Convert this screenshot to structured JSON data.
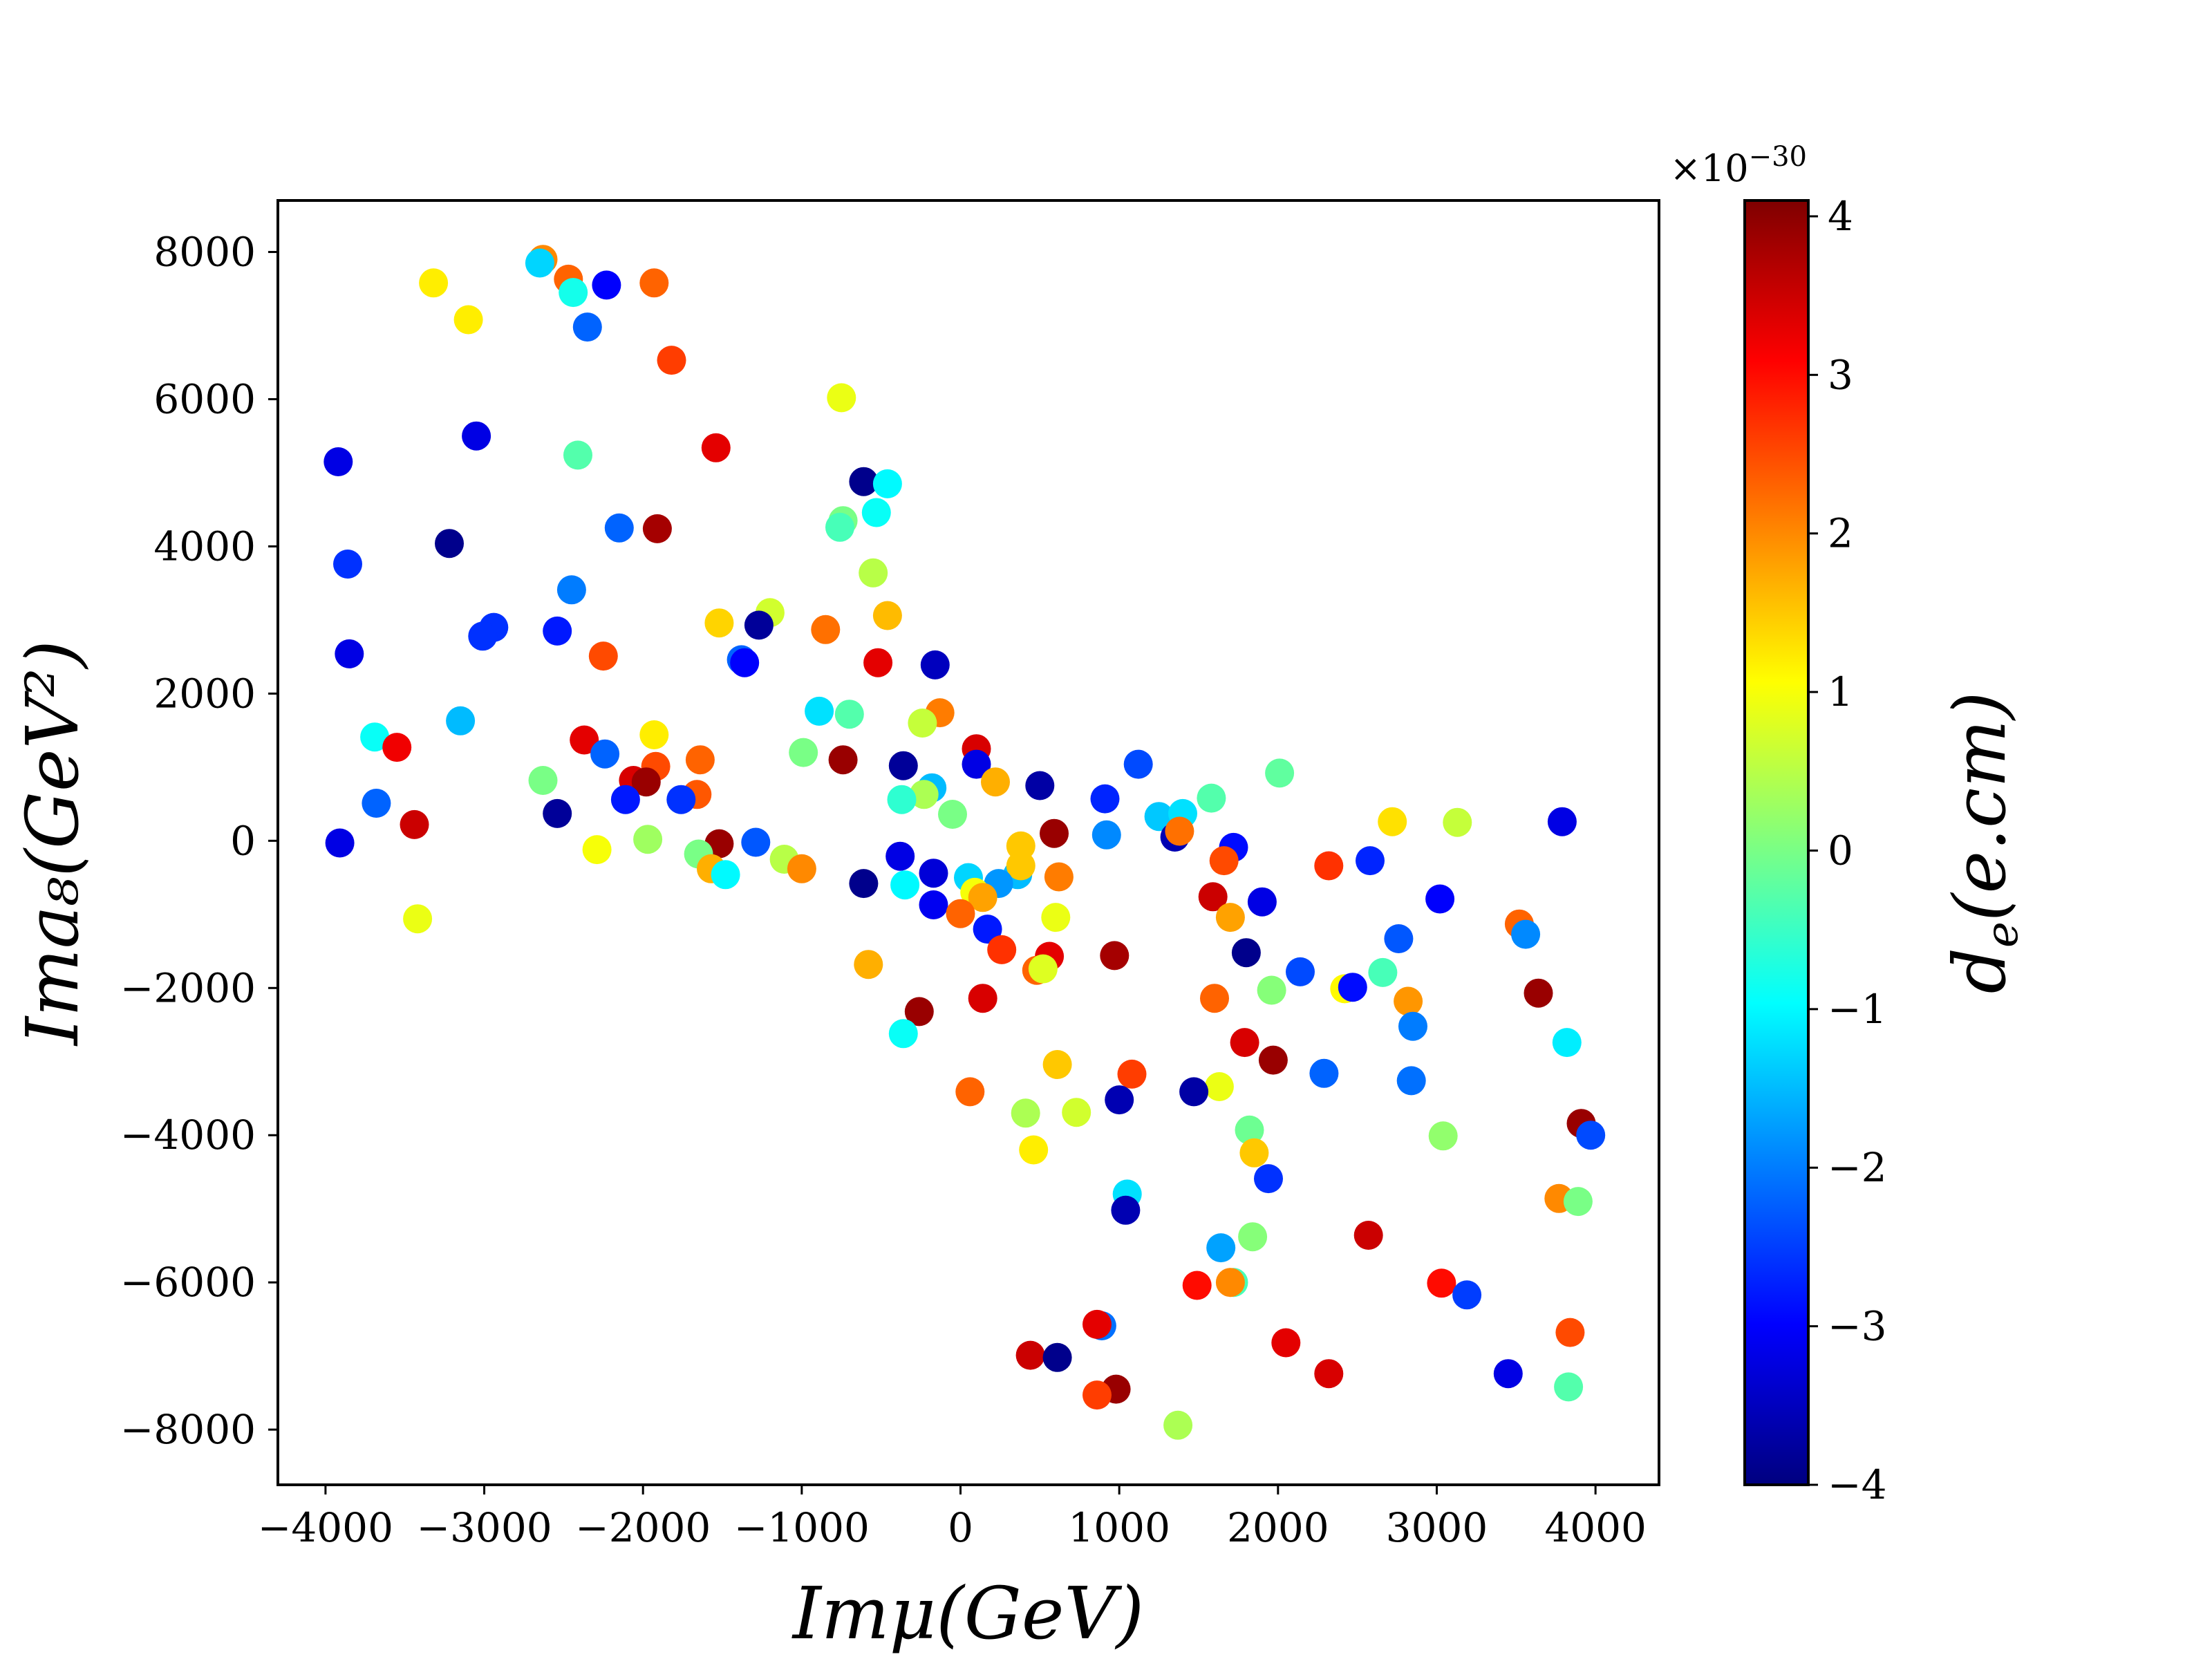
{
  "chart_data": {
    "type": "scatter",
    "xlabel": "Imμ(GeV)",
    "ylabel": "Ima₈(GeV²)",
    "xlim": [
      -4300,
      4400
    ],
    "ylim": [
      -8750,
      8700
    ],
    "x_ticks": [
      -4000,
      -3000,
      -2000,
      -1000,
      0,
      1000,
      2000,
      3000,
      4000
    ],
    "x_tick_labels": [
      "−4000",
      "−3000",
      "−2000",
      "−1000",
      "0",
      "1000",
      "2000",
      "3000",
      "4000"
    ],
    "y_ticks": [
      -8000,
      -6000,
      -4000,
      -2000,
      0,
      2000,
      4000,
      6000,
      8000
    ],
    "y_tick_labels": [
      "−8000",
      "−6000",
      "−4000",
      "−2000",
      "0",
      "2000",
      "4000",
      "6000",
      "8000"
    ],
    "grid": false,
    "colorbar": {
      "label": "d_e(e.cm)",
      "label_main": "d",
      "label_sub": "e",
      "label_rest": "(e.cm)",
      "exponent_prefix": "×10",
      "exponent_power": "−30",
      "range": [
        -4.0,
        4.1
      ],
      "ticks": [
        -4,
        -3,
        -2,
        -1,
        0,
        1,
        2,
        3,
        4
      ],
      "tick_labels": [
        "−4",
        "−3",
        "−2",
        "−1",
        "0",
        "1",
        "2",
        "3",
        "4"
      ],
      "colormap": "jet"
    },
    "points": [
      {
        "x": -2630,
        "y": 7900,
        "c": 2.0
      },
      {
        "x": -2650,
        "y": 7850,
        "c": -1.3
      },
      {
        "x": -2470,
        "y": 7630,
        "c": 2.3
      },
      {
        "x": -2230,
        "y": 7550,
        "c": -3.0
      },
      {
        "x": -1930,
        "y": 7580,
        "c": 2.3
      },
      {
        "x": -3320,
        "y": 7580,
        "c": 1.2
      },
      {
        "x": -2440,
        "y": 7450,
        "c": -0.8
      },
      {
        "x": -3100,
        "y": 7080,
        "c": 1.2
      },
      {
        "x": -2350,
        "y": 6980,
        "c": -2.2
      },
      {
        "x": -1820,
        "y": 6530,
        "c": 2.6
      },
      {
        "x": -750,
        "y": 6020,
        "c": 0.9
      },
      {
        "x": -3050,
        "y": 5500,
        "c": -3.2
      },
      {
        "x": -1540,
        "y": 5340,
        "c": 3.3
      },
      {
        "x": -2410,
        "y": 5240,
        "c": -0.3
      },
      {
        "x": -3920,
        "y": 5150,
        "c": -3.2
      },
      {
        "x": -610,
        "y": 4880,
        "c": -3.9
      },
      {
        "x": -460,
        "y": 4850,
        "c": -1.0
      },
      {
        "x": -530,
        "y": 4460,
        "c": -0.9
      },
      {
        "x": -740,
        "y": 4350,
        "c": 0.0
      },
      {
        "x": -760,
        "y": 4260,
        "c": -0.4
      },
      {
        "x": -2150,
        "y": 4250,
        "c": -2.2
      },
      {
        "x": -1910,
        "y": 4240,
        "c": 3.8
      },
      {
        "x": -3220,
        "y": 4040,
        "c": -3.9
      },
      {
        "x": -3860,
        "y": 3760,
        "c": -2.6
      },
      {
        "x": -550,
        "y": 3640,
        "c": 0.5
      },
      {
        "x": -2450,
        "y": 3410,
        "c": -2.0
      },
      {
        "x": -1200,
        "y": 3100,
        "c": 0.7
      },
      {
        "x": -460,
        "y": 3060,
        "c": 1.6
      },
      {
        "x": -1520,
        "y": 2960,
        "c": 1.4
      },
      {
        "x": -1270,
        "y": 2930,
        "c": -3.8
      },
      {
        "x": -2940,
        "y": 2900,
        "c": -2.6
      },
      {
        "x": -850,
        "y": 2870,
        "c": 2.2
      },
      {
        "x": -2540,
        "y": 2850,
        "c": -2.8
      },
      {
        "x": -3010,
        "y": 2780,
        "c": -2.6
      },
      {
        "x": -3850,
        "y": 2540,
        "c": -3.2
      },
      {
        "x": -2250,
        "y": 2510,
        "c": 2.5
      },
      {
        "x": -1380,
        "y": 2460,
        "c": -2.2
      },
      {
        "x": -1360,
        "y": 2420,
        "c": -3.0
      },
      {
        "x": -520,
        "y": 2420,
        "c": 3.3
      },
      {
        "x": -160,
        "y": 2390,
        "c": -3.5
      },
      {
        "x": -890,
        "y": 1760,
        "c": -1.2
      },
      {
        "x": -700,
        "y": 1720,
        "c": -0.3
      },
      {
        "x": -130,
        "y": 1740,
        "c": 2.1
      },
      {
        "x": -240,
        "y": 1600,
        "c": 0.6
      },
      {
        "x": -3150,
        "y": 1630,
        "c": -1.5
      },
      {
        "x": -1930,
        "y": 1440,
        "c": 1.2
      },
      {
        "x": -3690,
        "y": 1410,
        "c": -0.9
      },
      {
        "x": -2370,
        "y": 1370,
        "c": 3.3
      },
      {
        "x": -3550,
        "y": 1270,
        "c": 3.2
      },
      {
        "x": 100,
        "y": 1250,
        "c": 3.4
      },
      {
        "x": -990,
        "y": 1200,
        "c": 0.0
      },
      {
        "x": -2240,
        "y": 1180,
        "c": -2.2
      },
      {
        "x": -740,
        "y": 1100,
        "c": 3.9
      },
      {
        "x": -1640,
        "y": 1100,
        "c": 2.3
      },
      {
        "x": 100,
        "y": 1040,
        "c": -3.2
      },
      {
        "x": 1120,
        "y": 1040,
        "c": -2.4
      },
      {
        "x": -360,
        "y": 1020,
        "c": -3.8
      },
      {
        "x": -1920,
        "y": 1010,
        "c": 2.5
      },
      {
        "x": 2010,
        "y": 920,
        "c": -0.2
      },
      {
        "x": -2060,
        "y": 820,
        "c": 3.4
      },
      {
        "x": -2630,
        "y": 820,
        "c": 0.0
      },
      {
        "x": -1980,
        "y": 800,
        "c": 3.9
      },
      {
        "x": 220,
        "y": 800,
        "c": 1.7
      },
      {
        "x": 500,
        "y": 750,
        "c": -3.7
      },
      {
        "x": -180,
        "y": 720,
        "c": -1.5
      },
      {
        "x": -1660,
        "y": 630,
        "c": 2.4
      },
      {
        "x": -230,
        "y": 630,
        "c": 0.4
      },
      {
        "x": -2110,
        "y": 560,
        "c": -2.8
      },
      {
        "x": -1760,
        "y": 560,
        "c": -2.6
      },
      {
        "x": -370,
        "y": 560,
        "c": -0.6
      },
      {
        "x": 910,
        "y": 570,
        "c": -2.7
      },
      {
        "x": 1580,
        "y": 580,
        "c": -0.3
      },
      {
        "x": -3680,
        "y": 510,
        "c": -2.2
      },
      {
        "x": -2540,
        "y": 370,
        "c": -3.8
      },
      {
        "x": -50,
        "y": 360,
        "c": 0.0
      },
      {
        "x": 1250,
        "y": 330,
        "c": -1.4
      },
      {
        "x": 1400,
        "y": 370,
        "c": -1.2
      },
      {
        "x": 2720,
        "y": 260,
        "c": 1.3
      },
      {
        "x": 3130,
        "y": 250,
        "c": 0.6
      },
      {
        "x": 3790,
        "y": 260,
        "c": -3.2
      },
      {
        "x": -3440,
        "y": 220,
        "c": 3.5
      },
      {
        "x": 590,
        "y": 100,
        "c": 3.9
      },
      {
        "x": 920,
        "y": 80,
        "c": -1.9
      },
      {
        "x": 1350,
        "y": 50,
        "c": -3.6
      },
      {
        "x": 1380,
        "y": 130,
        "c": 2.2
      },
      {
        "x": 1720,
        "y": -90,
        "c": -2.9
      },
      {
        "x": -3910,
        "y": -30,
        "c": -3.2
      },
      {
        "x": -1520,
        "y": -40,
        "c": 3.9
      },
      {
        "x": -1290,
        "y": -20,
        "c": -2.3
      },
      {
        "x": -1970,
        "y": 20,
        "c": 0.3
      },
      {
        "x": -2290,
        "y": -120,
        "c": 1.0
      },
      {
        "x": 380,
        "y": -70,
        "c": 1.5
      },
      {
        "x": -1650,
        "y": -180,
        "c": 0.0
      },
      {
        "x": -1110,
        "y": -250,
        "c": 0.5
      },
      {
        "x": -380,
        "y": -210,
        "c": -3.2
      },
      {
        "x": 1660,
        "y": -270,
        "c": 2.5
      },
      {
        "x": 2320,
        "y": -340,
        "c": 2.7
      },
      {
        "x": 2580,
        "y": -270,
        "c": -2.7
      },
      {
        "x": -1570,
        "y": -380,
        "c": 1.7
      },
      {
        "x": -1480,
        "y": -460,
        "c": -1.0
      },
      {
        "x": -1000,
        "y": -380,
        "c": 2.0
      },
      {
        "x": -170,
        "y": -440,
        "c": -3.3
      },
      {
        "x": 50,
        "y": -500,
        "c": -1.3
      },
      {
        "x": 360,
        "y": -460,
        "c": -1.5
      },
      {
        "x": 380,
        "y": -340,
        "c": 1.5
      },
      {
        "x": 620,
        "y": -490,
        "c": 2.1
      },
      {
        "x": 240,
        "y": -580,
        "c": -1.8
      },
      {
        "x": -610,
        "y": -580,
        "c": -3.9
      },
      {
        "x": -350,
        "y": -600,
        "c": -1.0
      },
      {
        "x": 90,
        "y": -700,
        "c": 1.0
      },
      {
        "x": 140,
        "y": -770,
        "c": 1.8
      },
      {
        "x": 1590,
        "y": -760,
        "c": 3.5
      },
      {
        "x": 1900,
        "y": -830,
        "c": -3.2
      },
      {
        "x": 3020,
        "y": -790,
        "c": -3.0
      },
      {
        "x": -170,
        "y": -870,
        "c": -3.1
      },
      {
        "x": 0,
        "y": -990,
        "c": 2.3
      },
      {
        "x": 600,
        "y": -1040,
        "c": 0.9
      },
      {
        "x": 1700,
        "y": -1040,
        "c": 1.8
      },
      {
        "x": -3420,
        "y": -1060,
        "c": 0.9
      },
      {
        "x": 170,
        "y": -1200,
        "c": -2.8
      },
      {
        "x": 3520,
        "y": -1130,
        "c": 2.3
      },
      {
        "x": 3560,
        "y": -1270,
        "c": -1.9
      },
      {
        "x": 2760,
        "y": -1330,
        "c": -2.3
      },
      {
        "x": 260,
        "y": -1480,
        "c": 2.7
      },
      {
        "x": 560,
        "y": -1570,
        "c": 3.3
      },
      {
        "x": 970,
        "y": -1560,
        "c": 3.8
      },
      {
        "x": 1800,
        "y": -1520,
        "c": -3.9
      },
      {
        "x": -580,
        "y": -1680,
        "c": 1.7
      },
      {
        "x": 480,
        "y": -1760,
        "c": 2.3
      },
      {
        "x": 520,
        "y": -1740,
        "c": 0.8
      },
      {
        "x": 2140,
        "y": -1780,
        "c": -2.4
      },
      {
        "x": 2660,
        "y": -1790,
        "c": -0.4
      },
      {
        "x": 1960,
        "y": -2030,
        "c": 0.1
      },
      {
        "x": 2420,
        "y": -2010,
        "c": 1.1
      },
      {
        "x": 2470,
        "y": -1990,
        "c": -2.9
      },
      {
        "x": 3640,
        "y": -2070,
        "c": 3.9
      },
      {
        "x": 1600,
        "y": -2140,
        "c": 2.3
      },
      {
        "x": 140,
        "y": -2140,
        "c": 3.4
      },
      {
        "x": 2820,
        "y": -2180,
        "c": 1.9
      },
      {
        "x": -260,
        "y": -2320,
        "c": 3.9
      },
      {
        "x": 2850,
        "y": -2520,
        "c": -2.0
      },
      {
        "x": -360,
        "y": -2620,
        "c": -0.9
      },
      {
        "x": 1790,
        "y": -2740,
        "c": 3.4
      },
      {
        "x": 3820,
        "y": -2740,
        "c": -1.1
      },
      {
        "x": 1970,
        "y": -2980,
        "c": 3.9
      },
      {
        "x": 610,
        "y": -3040,
        "c": 1.5
      },
      {
        "x": 1080,
        "y": -3170,
        "c": 2.6
      },
      {
        "x": 2290,
        "y": -3160,
        "c": -2.2
      },
      {
        "x": 2840,
        "y": -3260,
        "c": -2.1
      },
      {
        "x": 1630,
        "y": -3340,
        "c": 0.9
      },
      {
        "x": 60,
        "y": -3410,
        "c": 2.3
      },
      {
        "x": 1470,
        "y": -3410,
        "c": -3.7
      },
      {
        "x": 1000,
        "y": -3520,
        "c": -3.6
      },
      {
        "x": 410,
        "y": -3700,
        "c": 0.4
      },
      {
        "x": 730,
        "y": -3690,
        "c": 0.7
      },
      {
        "x": 1820,
        "y": -3930,
        "c": -0.1
      },
      {
        "x": 3040,
        "y": -4010,
        "c": 0.2
      },
      {
        "x": 3910,
        "y": -3840,
        "c": 3.9
      },
      {
        "x": 3970,
        "y": -4000,
        "c": -2.4
      },
      {
        "x": 460,
        "y": -4200,
        "c": 1.2
      },
      {
        "x": 1850,
        "y": -4240,
        "c": 1.5
      },
      {
        "x": 1940,
        "y": -4590,
        "c": -2.6
      },
      {
        "x": 1050,
        "y": -4800,
        "c": -1.2
      },
      {
        "x": 3770,
        "y": -4860,
        "c": 2.0
      },
      {
        "x": 3890,
        "y": -4900,
        "c": 0.0
      },
      {
        "x": 1040,
        "y": -5020,
        "c": -3.6
      },
      {
        "x": 1840,
        "y": -5380,
        "c": 0.1
      },
      {
        "x": 2570,
        "y": -5360,
        "c": 3.5
      },
      {
        "x": 1640,
        "y": -5530,
        "c": -1.7
      },
      {
        "x": 1720,
        "y": -6000,
        "c": -0.4
      },
      {
        "x": 1700,
        "y": -6000,
        "c": 2.0
      },
      {
        "x": 1490,
        "y": -6040,
        "c": 3.0
      },
      {
        "x": 3030,
        "y": -6010,
        "c": 3.0
      },
      {
        "x": 3190,
        "y": -6170,
        "c": -2.5
      },
      {
        "x": 890,
        "y": -6590,
        "c": -2.1
      },
      {
        "x": 860,
        "y": -6570,
        "c": 3.3
      },
      {
        "x": 3840,
        "y": -6680,
        "c": 2.5
      },
      {
        "x": 2050,
        "y": -6820,
        "c": 3.3
      },
      {
        "x": 440,
        "y": -6990,
        "c": 3.5
      },
      {
        "x": 610,
        "y": -7020,
        "c": -3.9
      },
      {
        "x": 2320,
        "y": -7240,
        "c": 3.4
      },
      {
        "x": 3450,
        "y": -7240,
        "c": -3.2
      },
      {
        "x": 3830,
        "y": -7420,
        "c": -0.3
      },
      {
        "x": 980,
        "y": -7450,
        "c": 3.9
      },
      {
        "x": 860,
        "y": -7530,
        "c": 2.6
      },
      {
        "x": 1370,
        "y": -7940,
        "c": 0.4
      }
    ]
  }
}
